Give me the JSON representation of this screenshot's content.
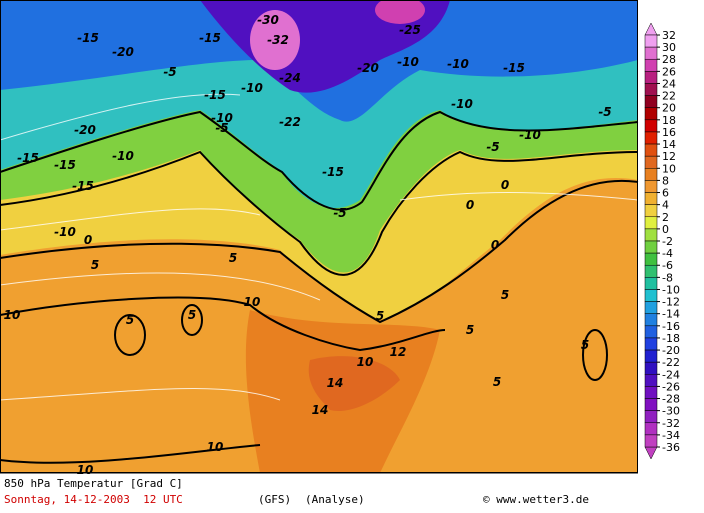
{
  "title": "850 hPa Temperatur [Grad C]",
  "date": "Sonntag, 14-12-2003  12 UTC",
  "model": "(GFS)",
  "run": "(Analyse)",
  "source": "© www.wetter3.de",
  "colorbar": {
    "ticks": [
      32,
      30,
      28,
      26,
      24,
      22,
      20,
      18,
      16,
      14,
      12,
      10,
      8,
      6,
      4,
      2,
      0,
      -2,
      -4,
      -6,
      -8,
      -10,
      -12,
      -14,
      -16,
      -18,
      -20,
      -22,
      -24,
      -26,
      -28,
      -30,
      -32,
      -34,
      -36
    ],
    "colors": [
      "#f0a0f0",
      "#e070d0",
      "#d040b0",
      "#b82080",
      "#a01050",
      "#900020",
      "#b00000",
      "#d00000",
      "#e02000",
      "#e05010",
      "#e06820",
      "#e88020",
      "#f09830",
      "#f0b030",
      "#f0d040",
      "#e0f040",
      "#a0e040",
      "#70d040",
      "#40c040",
      "#30c070",
      "#20c0a0",
      "#20c0d0",
      "#20a0e0",
      "#2080e0",
      "#2060e0",
      "#2040e0",
      "#2020d0",
      "#3010c0",
      "#5010c0",
      "#7010c0",
      "#8010c0",
      "#9020c0",
      "#b030c0",
      "#c040c0"
    ]
  },
  "map_labels": [
    "-15",
    "-20",
    "-15",
    "-15",
    "-15",
    "-10",
    "-20",
    "-5",
    "-15",
    "-15",
    "-10",
    "-5",
    "-10",
    "-30",
    "-32",
    "-24",
    "-22",
    "-25",
    "-20",
    "-10",
    "-10",
    "-15",
    "-10",
    "-5",
    "-10",
    "-5",
    "-15",
    "-5",
    "0",
    "5",
    "-10",
    "5",
    "10",
    "5",
    "5",
    "5",
    "10",
    "0",
    "0",
    "0",
    "5",
    "5",
    "5",
    "5",
    "10",
    "10",
    "10",
    "14",
    "12",
    "14"
  ]
}
